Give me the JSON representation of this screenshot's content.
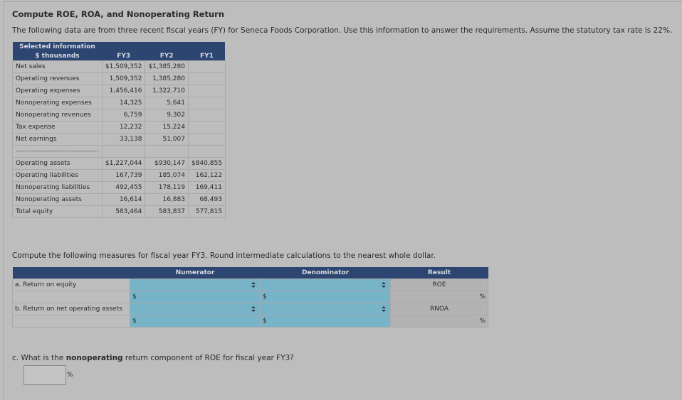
{
  "title": "Compute ROE, ROA, and Nonoperating Return",
  "intro": "The following data are from three recent fiscal years (FY) for Seneca Foods Corporation. Use this information to answer the requirements. Assume the statutory tax rate is 22%.",
  "data_table": {
    "header": [
      "Selected information",
      "$ thousands"
    ],
    "columns": [
      "FY3",
      "FY2",
      "FY1"
    ],
    "rows": [
      [
        "Net sales",
        "$1,509,352",
        "$1,385,280",
        null
      ],
      [
        "Operating revenues",
        "1,509,352",
        "1,385,280",
        null
      ],
      [
        "Operating expenses",
        "1,456,416",
        "1,322,710",
        null
      ],
      [
        "Nonoperating expenses",
        "14,325",
        "5,641",
        null
      ],
      [
        "Nonoperating revenues",
        "6,759",
        "9,302",
        null
      ],
      [
        "Tax expense",
        "12,232",
        "15,224",
        null
      ],
      [
        "Net earnings",
        "33,138",
        "51,007",
        null
      ],
      [
        "------------------------------------",
        null,
        null,
        null
      ],
      [
        "Operating assets",
        "$1,227,044",
        "$930,147",
        "$840,855"
      ],
      [
        "Operating liabilities",
        "167,739",
        "185,074",
        "162,122"
      ],
      [
        "Nonoperating liabilities",
        "492,455",
        "178,119",
        "169,411"
      ],
      [
        "Nonoperating assets",
        "16,614",
        "16,883",
        "68,493"
      ],
      [
        "Total equity",
        "583,464",
        "583,837",
        "577,815"
      ]
    ]
  },
  "instruction": "Compute the following measures for fiscal year FY3. Round intermediate calculations to the nearest whole dollar.",
  "measures_table": {
    "headers": [
      "Numerator",
      "Denominator",
      "Result"
    ],
    "rows": [
      {
        "label": "a. Return on equity",
        "result_label": "ROE"
      },
      {
        "label": "b. Return on net operating assets",
        "result_label": "RNOA"
      }
    ],
    "currency": "$",
    "percent": "%"
  },
  "question_c": {
    "prefix": "c. What is the",
    "bold": "nonoperating",
    "suffix": "return component of ROE for fiscal year FY3?",
    "unit": "%"
  }
}
